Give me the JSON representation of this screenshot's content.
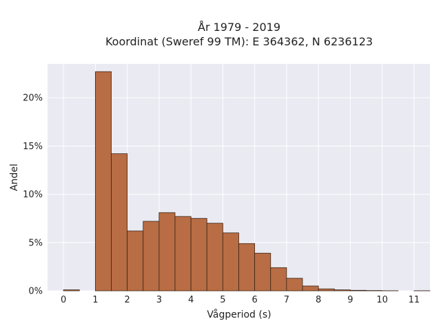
{
  "chart_data": {
    "type": "bar",
    "title_lines": [
      "År 1979 - 2019",
      "Koordinat (Sweref 99 TM): E 364362, N 6236123"
    ],
    "xlabel": "Vågperiod (s)",
    "ylabel": "Andel",
    "xlim": [
      -0.5,
      11.5
    ],
    "ylim": [
      0,
      0.235
    ],
    "x_ticks": [
      0,
      1,
      2,
      3,
      4,
      5,
      6,
      7,
      8,
      9,
      10,
      11
    ],
    "x_tick_labels": [
      "0",
      "1",
      "2",
      "3",
      "4",
      "5",
      "6",
      "7",
      "8",
      "9",
      "10",
      "11"
    ],
    "y_ticks": [
      0,
      0.05,
      0.1,
      0.15,
      0.2
    ],
    "y_tick_labels": [
      "0%",
      "5%",
      "10%",
      "15%",
      "20%"
    ],
    "bin_width": 0.5,
    "bin_starts": [
      0,
      0.5,
      1,
      1.5,
      2,
      2.5,
      3,
      3.5,
      4,
      4.5,
      5,
      5.5,
      6,
      6.5,
      7,
      7.5,
      8,
      8.5,
      9,
      9.5,
      10,
      10.5,
      11
    ],
    "values": [
      0.001,
      0,
      0.227,
      0.142,
      0.062,
      0.072,
      0.081,
      0.077,
      0.075,
      0.07,
      0.06,
      0.049,
      0.039,
      0.024,
      0.013,
      0.005,
      0.002,
      0.001,
      0.0005,
      0.0003,
      0.0001,
      0,
      0.0001
    ],
    "grid": true,
    "colors": {
      "bar_fill": "#b86d44",
      "bar_edge": "#3a2418",
      "plot_background": "#eaeaf2",
      "grid": "#ffffff",
      "text": "#222222"
    }
  }
}
